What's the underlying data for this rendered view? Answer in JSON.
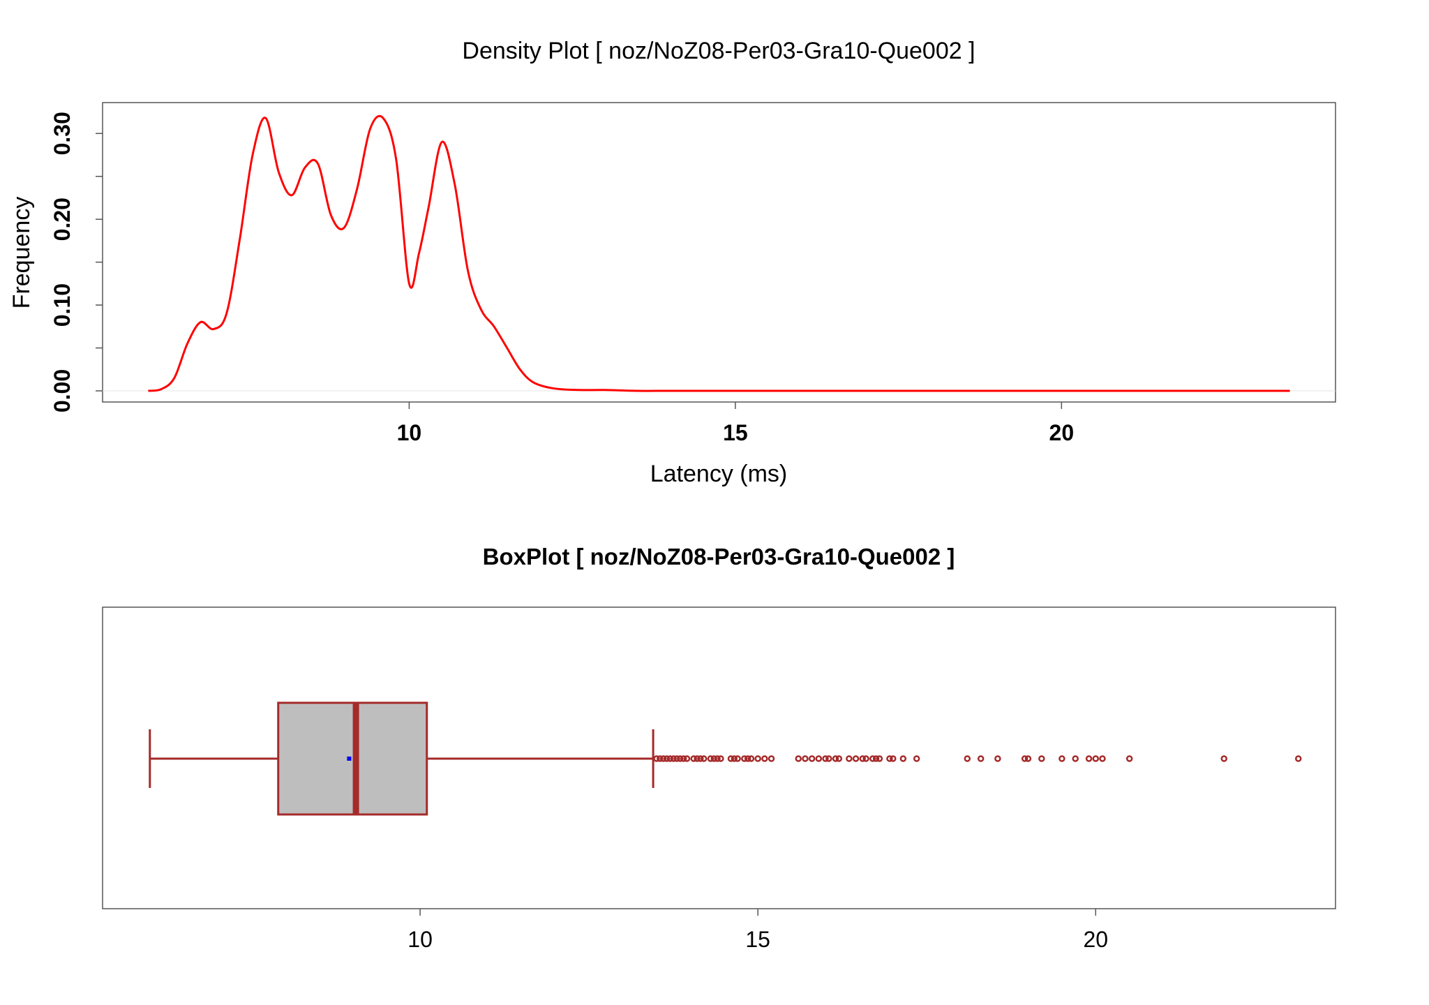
{
  "chart_data": [
    {
      "type": "line",
      "title": "Density Plot [ noz/NoZ08-Per03-Gra10-Que002 ]",
      "xlabel": "Latency (ms)",
      "ylabel": "Frequency",
      "xlim": [
        5.3,
        24.2
      ],
      "ylim": [
        -0.013,
        0.336
      ],
      "x_ticks": [
        10,
        15,
        20
      ],
      "y_ticks": [
        0.0,
        0.1,
        0.2,
        0.3
      ],
      "y_tick_labels": [
        "0.00",
        "0.10",
        "0.20",
        "0.30"
      ],
      "line_color": "#ff0000",
      "grid": false,
      "series": [
        {
          "x": [
            6.0,
            6.2,
            6.4,
            6.6,
            6.8,
            7.0,
            7.2,
            7.4,
            7.6,
            7.8,
            8.0,
            8.2,
            8.4,
            8.6,
            8.8,
            9.0,
            9.2,
            9.4,
            9.6,
            9.8,
            10.0,
            10.15,
            10.3,
            10.5,
            10.7,
            10.9,
            11.1,
            11.3,
            11.5,
            11.7,
            11.9,
            12.2,
            12.6,
            13.0,
            13.5,
            14.0,
            15.0,
            16.0,
            18.0,
            20.0,
            22.0,
            23.5
          ],
          "y": [
            0.0,
            0.002,
            0.015,
            0.055,
            0.08,
            0.072,
            0.09,
            0.175,
            0.275,
            0.318,
            0.255,
            0.228,
            0.26,
            0.265,
            0.205,
            0.19,
            0.235,
            0.305,
            0.318,
            0.27,
            0.125,
            0.16,
            0.215,
            0.29,
            0.24,
            0.14,
            0.095,
            0.075,
            0.05,
            0.025,
            0.01,
            0.003,
            0.001,
            0.001,
            0.0,
            0.0,
            0.0,
            0.0,
            0.0,
            0.0,
            0.0,
            0.0
          ]
        }
      ]
    },
    {
      "type": "box",
      "title": "BoxPlot [ noz/NoZ08-Per03-Gra10-Que002 ]",
      "xlim": [
        5.3,
        23.55
      ],
      "x_ticks": [
        10,
        15,
        20
      ],
      "box_fill": "#bebebe",
      "box_color": "#a52a2a",
      "mean_color": "#0000ff",
      "whisker_low": 6.0,
      "q1": 7.9,
      "median": 9.05,
      "mean": 8.95,
      "q3": 10.1,
      "whisker_high": 13.45,
      "outliers": [
        13.5,
        13.55,
        13.6,
        13.65,
        13.7,
        13.75,
        13.8,
        13.85,
        13.9,
        13.95,
        14.05,
        14.1,
        14.15,
        14.2,
        14.3,
        14.35,
        14.4,
        14.45,
        14.6,
        14.65,
        14.7,
        14.8,
        14.85,
        14.9,
        15.0,
        15.1,
        15.2,
        15.6,
        15.7,
        15.8,
        15.9,
        16.0,
        16.05,
        16.15,
        16.2,
        16.35,
        16.45,
        16.55,
        16.6,
        16.7,
        16.75,
        16.8,
        16.95,
        17.0,
        17.15,
        17.35,
        18.1,
        18.3,
        18.55,
        18.95,
        19.0,
        19.2,
        19.5,
        19.7,
        19.9,
        20.0,
        20.1,
        20.5,
        21.9,
        23.0
      ]
    }
  ]
}
